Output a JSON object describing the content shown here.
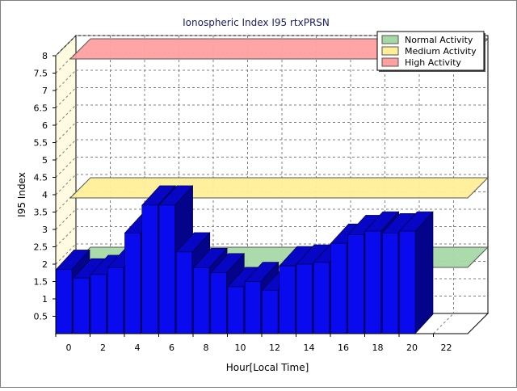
{
  "chart_data": {
    "type": "bar",
    "title": "Ionospheric Index I95 rtxPRSN",
    "xlabel": "Hour[Local Time]",
    "ylabel": "I95 Index",
    "x_ticks": [
      "0",
      "2",
      "4",
      "6",
      "8",
      "10",
      "12",
      "14",
      "16",
      "18",
      "20",
      "22"
    ],
    "y_ticks": [
      "0.5",
      "1",
      "1.5",
      "2",
      "2.5",
      "3",
      "3.5",
      "4",
      "4.5",
      "5",
      "5.5",
      "6",
      "6.5",
      "7",
      "7.5",
      "8"
    ],
    "ylim": [
      0,
      8
    ],
    "xlim": [
      0,
      24
    ],
    "grid": true,
    "legend_position": "top-right",
    "categories": [
      0,
      1,
      2,
      3,
      4,
      5,
      6,
      7,
      8,
      9,
      10,
      11,
      12,
      13,
      14,
      15,
      16,
      17,
      18,
      19,
      20
    ],
    "values": [
      1.85,
      1.6,
      1.7,
      1.9,
      2.9,
      3.7,
      3.7,
      2.35,
      1.9,
      1.75,
      1.35,
      1.5,
      1.25,
      1.95,
      2.0,
      2.05,
      2.6,
      2.85,
      2.95,
      2.9,
      2.95
    ],
    "bar_color": "#0a0aee",
    "bands": [
      {
        "name": "Normal Activity",
        "value": 2.0,
        "color": "#a6d8a6"
      },
      {
        "name": "Medium Activity",
        "value": 4.0,
        "color": "#ffef99"
      },
      {
        "name": "High Activity",
        "value": 8.0,
        "color": "#ffa0a0"
      }
    ]
  }
}
